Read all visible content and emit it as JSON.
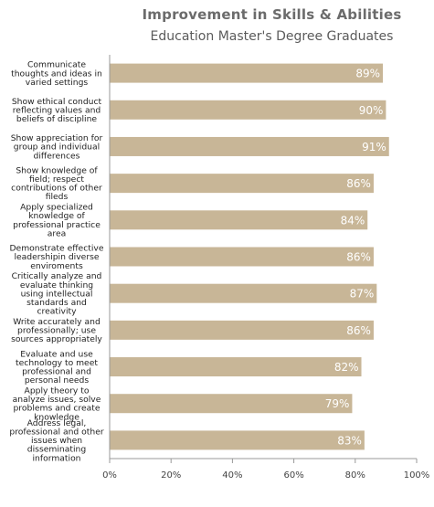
{
  "chart_data": {
    "type": "bar",
    "orientation": "horizontal",
    "title": "Improvement in Skills & Abilities",
    "subtitle": "Education Master's  Degree Graduates",
    "categories": [
      [
        "Communicate",
        "thoughts and ideas in",
        "varied settings"
      ],
      [
        "Show ethical conduct",
        "reflecting values and",
        "beliefs of discipline"
      ],
      [
        "Show appreciation for",
        "group and individual",
        "differences"
      ],
      [
        "Show knowledge of",
        "field; respect",
        "contributions of other",
        "fileds"
      ],
      [
        "Apply specialized",
        "knowledge of",
        "professional practice",
        "area"
      ],
      [
        "Demonstrate effective",
        "leadershipin diverse",
        "enviroments"
      ],
      [
        "Critically analyze and",
        "evaluate thinking",
        "using intellectual",
        "standards and",
        "creativity"
      ],
      [
        "Write accurately and",
        "professionally; use",
        "sources appropriately"
      ],
      [
        "Evaluate and use",
        "technology to meet",
        "professional and",
        "personal needs"
      ],
      [
        "Apply theory to",
        "analyze issues, solve",
        "problems and create",
        "knowledge"
      ],
      [
        "Address legal,",
        "professional and other",
        "issues when",
        "disseminating",
        "information"
      ]
    ],
    "values": [
      89,
      90,
      91,
      86,
      84,
      86,
      87,
      86,
      82,
      79,
      83
    ],
    "value_labels": [
      "89%",
      "90%",
      "91%",
      "86%",
      "84%",
      "86%",
      "87%",
      "86%",
      "82%",
      "79%",
      "83%"
    ],
    "xlim": [
      0,
      100
    ],
    "xticks": [
      0,
      20,
      40,
      60,
      80,
      100
    ],
    "xtick_labels": [
      "0%",
      "20%",
      "40%",
      "60%",
      "80%",
      "100%"
    ],
    "xlabel": "",
    "ylabel": "",
    "grid": false,
    "legend": "none",
    "bar_color": "#c8b697",
    "axis_color": "#999999"
  }
}
